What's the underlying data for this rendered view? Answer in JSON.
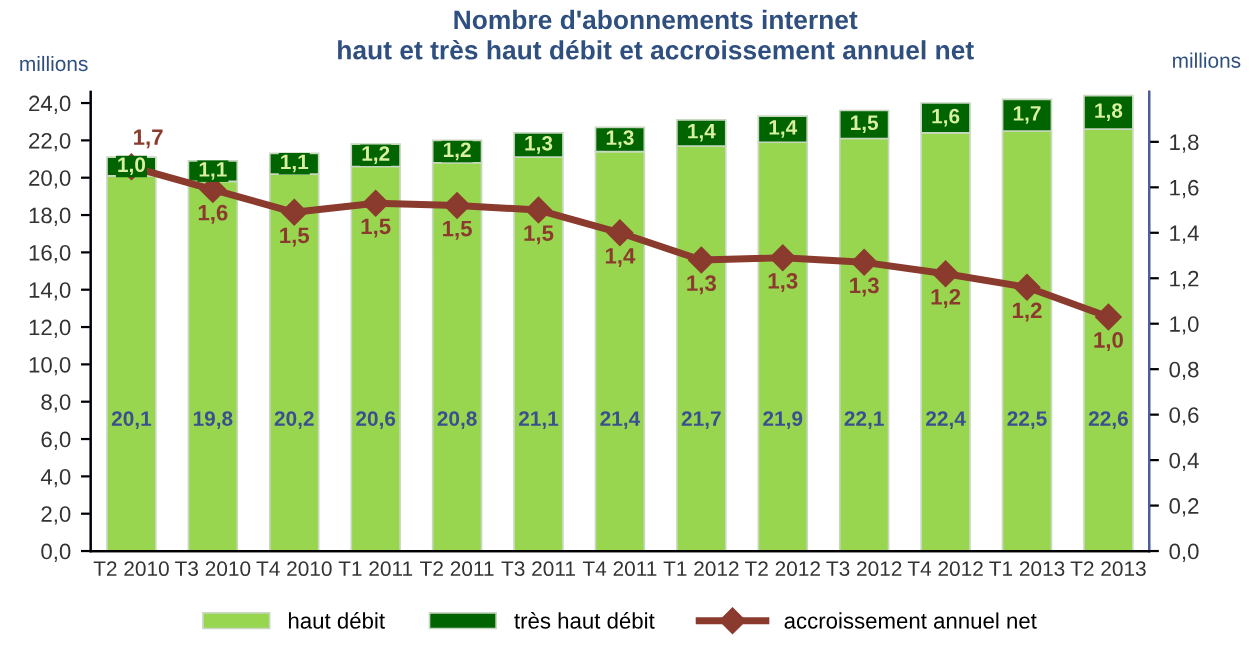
{
  "chart_data": {
    "type": "bar",
    "stacked": true,
    "title": "Nombre d'abonnements internet\nhaut et très haut débit et accroissement annuel net",
    "ylabel": "millions",
    "y2label": "millions",
    "categories": [
      "T2 2010",
      "T3 2010",
      "T4 2010",
      "T1 2011",
      "T2 2011",
      "T3 2011",
      "T4 2011",
      "T1 2012",
      "T2 2012",
      "T3 2012",
      "T4 2012",
      "T1 2013",
      "T2 2013"
    ],
    "series": [
      {
        "name": "haut débit",
        "color": "#99d650",
        "values": [
          20.1,
          19.8,
          20.2,
          20.6,
          20.8,
          21.1,
          21.4,
          21.7,
          21.9,
          22.1,
          22.4,
          22.5,
          22.6
        ],
        "value_labels": [
          "20,1",
          "19,8",
          "20,2",
          "20,6",
          "20,8",
          "21,1",
          "21,4",
          "21,7",
          "21,9",
          "22,1",
          "22,4",
          "22,5",
          "22,6"
        ]
      },
      {
        "name": "très haut débit",
        "color": "#006400",
        "values": [
          1.0,
          1.1,
          1.1,
          1.2,
          1.2,
          1.3,
          1.3,
          1.4,
          1.4,
          1.5,
          1.6,
          1.7,
          1.8
        ],
        "value_labels": [
          "1,0",
          "1,1",
          "1,1",
          "1,2",
          "1,2",
          "1,3",
          "1,3",
          "1,4",
          "1,4",
          "1,5",
          "1,6",
          "1,7",
          "1,8"
        ]
      },
      {
        "name": "accroissement annuel net",
        "type": "line",
        "axis": "y2",
        "color": "#8b3a2e",
        "values": [
          1.69,
          1.59,
          1.49,
          1.53,
          1.52,
          1.5,
          1.4,
          1.28,
          1.29,
          1.27,
          1.22,
          1.16,
          1.03
        ],
        "value_labels": [
          "1,7",
          "1,6",
          "1,5",
          "1,5",
          "1,5",
          "1,5",
          "1,4",
          "1,3",
          "1,3",
          "1,3",
          "1,2",
          "1,2",
          "1,0"
        ]
      }
    ],
    "ylim": [
      0,
      24.6
    ],
    "yticks": [
      {
        "value": 0,
        "label": "0,0"
      },
      {
        "value": 2,
        "label": "2,0"
      },
      {
        "value": 4,
        "label": "4,0"
      },
      {
        "value": 6,
        "label": "6,0"
      },
      {
        "value": 8,
        "label": "8,0"
      },
      {
        "value": 10,
        "label": "10,0"
      },
      {
        "value": 12,
        "label": "12,0"
      },
      {
        "value": 14,
        "label": "14,0"
      },
      {
        "value": 16,
        "label": "16,0"
      },
      {
        "value": 18,
        "label": "18,0"
      },
      {
        "value": 20,
        "label": "20,0"
      },
      {
        "value": 22,
        "label": "22,0"
      },
      {
        "value": 24,
        "label": "24,0"
      }
    ],
    "y2lim": [
      0,
      2.02
    ],
    "y2ticks": [
      {
        "value": 0,
        "label": "0,0"
      },
      {
        "value": 0.2,
        "label": "0,2"
      },
      {
        "value": 0.4,
        "label": "0,4"
      },
      {
        "value": 0.6,
        "label": "0,6"
      },
      {
        "value": 0.8,
        "label": "0,8"
      },
      {
        "value": 1.0,
        "label": "1,0"
      },
      {
        "value": 1.2,
        "label": "1,2"
      },
      {
        "value": 1.4,
        "label": "1,4"
      },
      {
        "value": 1.6,
        "label": "1,6"
      },
      {
        "value": 1.8,
        "label": "1,8"
      }
    ],
    "grid": false,
    "legend": "bottom",
    "marker": "diamond",
    "line_style": "solid"
  }
}
